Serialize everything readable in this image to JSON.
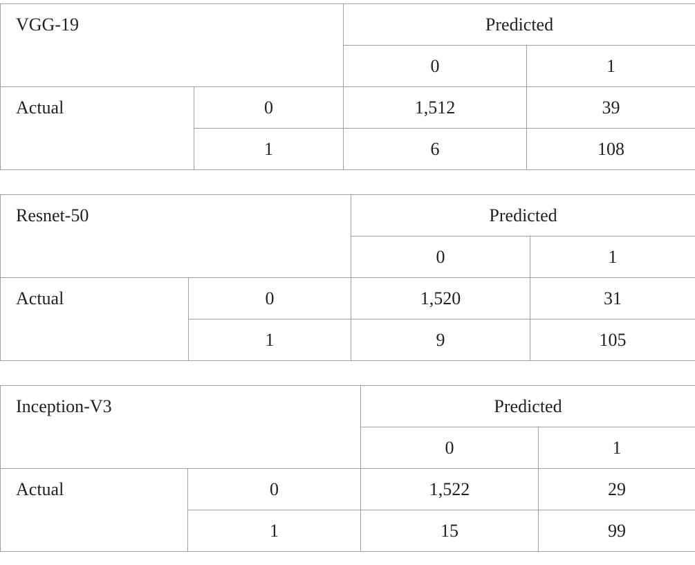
{
  "tables": [
    {
      "title": "VGG-19",
      "predicted_label": "Predicted",
      "actual_label": "Actual",
      "predicted_classes": [
        "0",
        "1"
      ],
      "rows": [
        {
          "class": "0",
          "values": [
            "1,512",
            "39"
          ]
        },
        {
          "class": "1",
          "values": [
            "6",
            "108"
          ]
        }
      ]
    },
    {
      "title": "Resnet-50",
      "predicted_label": "Predicted",
      "actual_label": "Actual",
      "predicted_classes": [
        "0",
        "1"
      ],
      "rows": [
        {
          "class": "0",
          "values": [
            "1,520",
            "31"
          ]
        },
        {
          "class": "1",
          "values": [
            "9",
            "105"
          ]
        }
      ]
    },
    {
      "title": "Inception-V3",
      "predicted_label": "Predicted",
      "actual_label": "Actual",
      "predicted_classes": [
        "0",
        "1"
      ],
      "rows": [
        {
          "class": "0",
          "values": [
            "1,522",
            "29"
          ]
        },
        {
          "class": "1",
          "values": [
            "15",
            "99"
          ]
        }
      ]
    }
  ]
}
